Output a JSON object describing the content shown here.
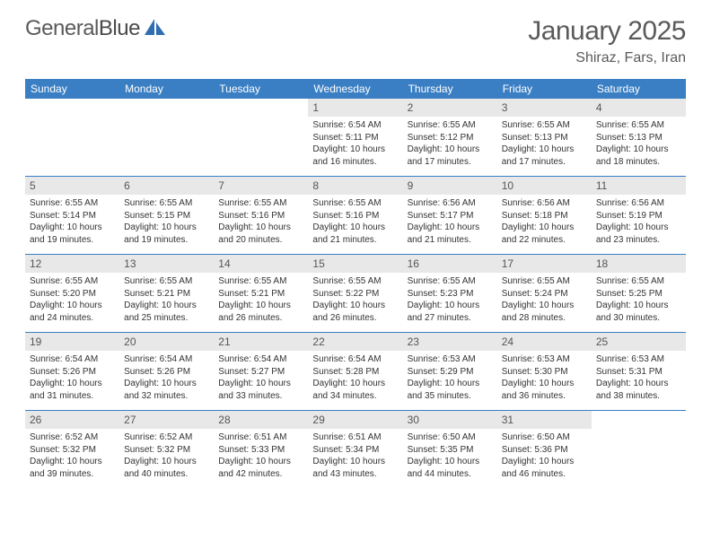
{
  "brand": {
    "part1": "General",
    "part2": "Blue"
  },
  "title": "January 2025",
  "location": "Shiraz, Fars, Iran",
  "colors": {
    "header_bg": "#3a7fc4",
    "header_text": "#ffffff",
    "daynum_bg": "#e8e8e8",
    "text": "#333333",
    "brand_text": "#5a5a5a",
    "logo_accent": "#2f6fb0"
  },
  "daysOfWeek": [
    "Sunday",
    "Monday",
    "Tuesday",
    "Wednesday",
    "Thursday",
    "Friday",
    "Saturday"
  ],
  "grid": {
    "firstDayIndex": 3,
    "daysInMonth": 31
  },
  "days": {
    "1": {
      "sunrise": "6:54 AM",
      "sunset": "5:11 PM",
      "daylight": "10 hours and 16 minutes."
    },
    "2": {
      "sunrise": "6:55 AM",
      "sunset": "5:12 PM",
      "daylight": "10 hours and 17 minutes."
    },
    "3": {
      "sunrise": "6:55 AM",
      "sunset": "5:13 PM",
      "daylight": "10 hours and 17 minutes."
    },
    "4": {
      "sunrise": "6:55 AM",
      "sunset": "5:13 PM",
      "daylight": "10 hours and 18 minutes."
    },
    "5": {
      "sunrise": "6:55 AM",
      "sunset": "5:14 PM",
      "daylight": "10 hours and 19 minutes."
    },
    "6": {
      "sunrise": "6:55 AM",
      "sunset": "5:15 PM",
      "daylight": "10 hours and 19 minutes."
    },
    "7": {
      "sunrise": "6:55 AM",
      "sunset": "5:16 PM",
      "daylight": "10 hours and 20 minutes."
    },
    "8": {
      "sunrise": "6:55 AM",
      "sunset": "5:16 PM",
      "daylight": "10 hours and 21 minutes."
    },
    "9": {
      "sunrise": "6:56 AM",
      "sunset": "5:17 PM",
      "daylight": "10 hours and 21 minutes."
    },
    "10": {
      "sunrise": "6:56 AM",
      "sunset": "5:18 PM",
      "daylight": "10 hours and 22 minutes."
    },
    "11": {
      "sunrise": "6:56 AM",
      "sunset": "5:19 PM",
      "daylight": "10 hours and 23 minutes."
    },
    "12": {
      "sunrise": "6:55 AM",
      "sunset": "5:20 PM",
      "daylight": "10 hours and 24 minutes."
    },
    "13": {
      "sunrise": "6:55 AM",
      "sunset": "5:21 PM",
      "daylight": "10 hours and 25 minutes."
    },
    "14": {
      "sunrise": "6:55 AM",
      "sunset": "5:21 PM",
      "daylight": "10 hours and 26 minutes."
    },
    "15": {
      "sunrise": "6:55 AM",
      "sunset": "5:22 PM",
      "daylight": "10 hours and 26 minutes."
    },
    "16": {
      "sunrise": "6:55 AM",
      "sunset": "5:23 PM",
      "daylight": "10 hours and 27 minutes."
    },
    "17": {
      "sunrise": "6:55 AM",
      "sunset": "5:24 PM",
      "daylight": "10 hours and 28 minutes."
    },
    "18": {
      "sunrise": "6:55 AM",
      "sunset": "5:25 PM",
      "daylight": "10 hours and 30 minutes."
    },
    "19": {
      "sunrise": "6:54 AM",
      "sunset": "5:26 PM",
      "daylight": "10 hours and 31 minutes."
    },
    "20": {
      "sunrise": "6:54 AM",
      "sunset": "5:26 PM",
      "daylight": "10 hours and 32 minutes."
    },
    "21": {
      "sunrise": "6:54 AM",
      "sunset": "5:27 PM",
      "daylight": "10 hours and 33 minutes."
    },
    "22": {
      "sunrise": "6:54 AM",
      "sunset": "5:28 PM",
      "daylight": "10 hours and 34 minutes."
    },
    "23": {
      "sunrise": "6:53 AM",
      "sunset": "5:29 PM",
      "daylight": "10 hours and 35 minutes."
    },
    "24": {
      "sunrise": "6:53 AM",
      "sunset": "5:30 PM",
      "daylight": "10 hours and 36 minutes."
    },
    "25": {
      "sunrise": "6:53 AM",
      "sunset": "5:31 PM",
      "daylight": "10 hours and 38 minutes."
    },
    "26": {
      "sunrise": "6:52 AM",
      "sunset": "5:32 PM",
      "daylight": "10 hours and 39 minutes."
    },
    "27": {
      "sunrise": "6:52 AM",
      "sunset": "5:32 PM",
      "daylight": "10 hours and 40 minutes."
    },
    "28": {
      "sunrise": "6:51 AM",
      "sunset": "5:33 PM",
      "daylight": "10 hours and 42 minutes."
    },
    "29": {
      "sunrise": "6:51 AM",
      "sunset": "5:34 PM",
      "daylight": "10 hours and 43 minutes."
    },
    "30": {
      "sunrise": "6:50 AM",
      "sunset": "5:35 PM",
      "daylight": "10 hours and 44 minutes."
    },
    "31": {
      "sunrise": "6:50 AM",
      "sunset": "5:36 PM",
      "daylight": "10 hours and 46 minutes."
    }
  },
  "labels": {
    "sunrise": "Sunrise:",
    "sunset": "Sunset:",
    "daylight": "Daylight:"
  }
}
